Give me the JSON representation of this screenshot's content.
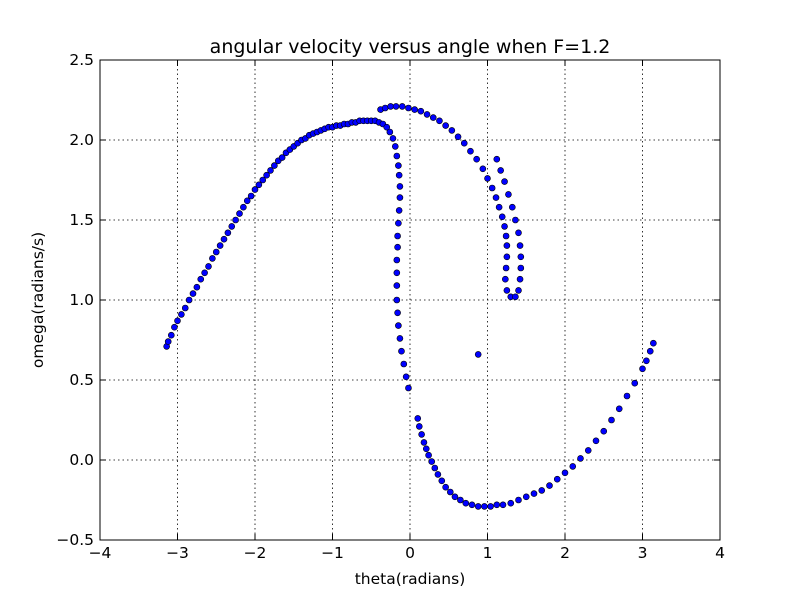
{
  "chart_data": {
    "type": "scatter",
    "title": "angular velocity versus angle when F=1.2",
    "xlabel": "theta(radians)",
    "ylabel": "omega(radians/s)",
    "xlim": [
      -4,
      4
    ],
    "ylim": [
      -0.5,
      2.5
    ],
    "xticks": [
      -4,
      -3,
      -2,
      -1,
      0,
      1,
      2,
      3,
      4
    ],
    "yticks": [
      -0.5,
      0.0,
      0.5,
      1.0,
      1.5,
      2.0,
      2.5
    ],
    "xtick_labels": [
      "−4",
      "−3",
      "−2",
      "−1",
      "0",
      "1",
      "2",
      "3",
      "4"
    ],
    "ytick_labels": [
      "−0.5",
      "0.0",
      "0.5",
      "1.0",
      "1.5",
      "2.0",
      "2.5"
    ],
    "grid": true,
    "marker_color": "#0000ff",
    "series": [
      {
        "points": [
          [
            -3.14,
            0.71
          ],
          [
            -3.12,
            0.74
          ],
          [
            -3.08,
            0.78
          ],
          [
            -3.04,
            0.83
          ],
          [
            -3.0,
            0.87
          ],
          [
            -2.95,
            0.91
          ],
          [
            -2.9,
            0.95
          ],
          [
            -2.85,
            1.0
          ],
          [
            -2.8,
            1.04
          ],
          [
            -2.75,
            1.08
          ],
          [
            -2.7,
            1.13
          ],
          [
            -2.65,
            1.17
          ],
          [
            -2.6,
            1.21
          ],
          [
            -2.55,
            1.26
          ],
          [
            -2.5,
            1.3
          ],
          [
            -2.45,
            1.34
          ],
          [
            -2.4,
            1.38
          ],
          [
            -2.35,
            1.42
          ],
          [
            -2.3,
            1.46
          ],
          [
            -2.25,
            1.5
          ],
          [
            -2.2,
            1.54
          ],
          [
            -2.15,
            1.58
          ],
          [
            -2.1,
            1.62
          ],
          [
            -2.05,
            1.65
          ],
          [
            -2.0,
            1.69
          ],
          [
            -1.95,
            1.72
          ],
          [
            -1.9,
            1.75
          ],
          [
            -1.85,
            1.78
          ],
          [
            -1.8,
            1.81
          ],
          [
            -1.75,
            1.84
          ],
          [
            -1.7,
            1.87
          ],
          [
            -1.65,
            1.89
          ],
          [
            -1.6,
            1.92
          ],
          [
            -1.55,
            1.94
          ],
          [
            -1.5,
            1.96
          ],
          [
            -1.45,
            1.98
          ],
          [
            -1.4,
            2.0
          ],
          [
            -1.35,
            2.01
          ],
          [
            -1.3,
            2.03
          ],
          [
            -1.25,
            2.04
          ],
          [
            -1.2,
            2.05
          ],
          [
            -1.15,
            2.06
          ],
          [
            -1.1,
            2.07
          ],
          [
            -1.05,
            2.08
          ],
          [
            -1.0,
            2.08
          ],
          [
            -0.95,
            2.09
          ],
          [
            -0.9,
            2.09
          ],
          [
            -0.85,
            2.1
          ],
          [
            -0.8,
            2.1
          ],
          [
            -0.75,
            2.11
          ],
          [
            -0.7,
            2.11
          ],
          [
            -0.65,
            2.12
          ],
          [
            -0.6,
            2.12
          ],
          [
            -0.55,
            2.12
          ],
          [
            -0.5,
            2.12
          ],
          [
            -0.45,
            2.12
          ],
          [
            -0.4,
            2.11
          ],
          [
            -0.35,
            2.1
          ],
          [
            -0.3,
            2.08
          ],
          [
            -0.26,
            2.05
          ],
          [
            -0.22,
            2.01
          ],
          [
            -0.19,
            1.96
          ],
          [
            -0.17,
            1.9
          ],
          [
            -0.15,
            1.84
          ],
          [
            -0.14,
            1.78
          ],
          [
            -0.13,
            1.71
          ],
          [
            -0.13,
            1.64
          ],
          [
            -0.14,
            1.56
          ],
          [
            -0.15,
            1.48
          ],
          [
            -0.16,
            1.4
          ],
          [
            -0.16,
            1.33
          ],
          [
            -0.17,
            1.25
          ],
          [
            -0.17,
            1.17
          ],
          [
            -0.17,
            1.09
          ],
          [
            -0.17,
            1.0
          ],
          [
            -0.16,
            0.92
          ],
          [
            -0.15,
            0.84
          ],
          [
            -0.13,
            0.76
          ],
          [
            -0.11,
            0.68
          ],
          [
            -0.08,
            0.6
          ],
          [
            -0.05,
            0.52
          ],
          [
            -0.02,
            0.45
          ],
          [
            0.1,
            0.26
          ],
          [
            0.12,
            0.21
          ],
          [
            0.15,
            0.16
          ],
          [
            0.18,
            0.11
          ],
          [
            0.21,
            0.07
          ],
          [
            0.24,
            0.03
          ],
          [
            0.28,
            -0.01
          ],
          [
            0.32,
            -0.05
          ],
          [
            0.36,
            -0.09
          ],
          [
            0.41,
            -0.13
          ],
          [
            0.46,
            -0.17
          ],
          [
            0.52,
            -0.2
          ],
          [
            0.58,
            -0.23
          ],
          [
            0.65,
            -0.25
          ],
          [
            0.72,
            -0.27
          ],
          [
            0.8,
            -0.28
          ],
          [
            0.88,
            -0.29
          ],
          [
            0.96,
            -0.29
          ],
          [
            1.04,
            -0.29
          ],
          [
            1.12,
            -0.28
          ],
          [
            1.2,
            -0.28
          ],
          [
            1.3,
            -0.27
          ],
          [
            1.4,
            -0.25
          ],
          [
            1.5,
            -0.23
          ],
          [
            1.6,
            -0.21
          ],
          [
            1.7,
            -0.19
          ],
          [
            1.8,
            -0.16
          ],
          [
            1.9,
            -0.12
          ],
          [
            2.0,
            -0.08
          ],
          [
            2.1,
            -0.04
          ],
          [
            2.2,
            0.01
          ],
          [
            2.3,
            0.06
          ],
          [
            2.4,
            0.12
          ],
          [
            2.5,
            0.18
          ],
          [
            2.6,
            0.25
          ],
          [
            2.7,
            0.32
          ],
          [
            2.8,
            0.4
          ],
          [
            2.9,
            0.48
          ],
          [
            3.0,
            0.57
          ],
          [
            3.05,
            0.62
          ],
          [
            3.1,
            0.68
          ],
          [
            3.14,
            0.73
          ],
          [
            -0.38,
            2.19
          ],
          [
            -0.32,
            2.2
          ],
          [
            -0.25,
            2.21
          ],
          [
            -0.18,
            2.21
          ],
          [
            -0.1,
            2.21
          ],
          [
            -0.02,
            2.2
          ],
          [
            0.06,
            2.19
          ],
          [
            0.14,
            2.18
          ],
          [
            0.22,
            2.16
          ],
          [
            0.3,
            2.14
          ],
          [
            0.38,
            2.12
          ],
          [
            0.46,
            2.09
          ],
          [
            0.54,
            2.06
          ],
          [
            0.62,
            2.02
          ],
          [
            0.7,
            1.98
          ],
          [
            0.78,
            1.93
          ],
          [
            0.86,
            1.88
          ],
          [
            0.94,
            1.82
          ],
          [
            1.0,
            1.76
          ],
          [
            1.06,
            1.7
          ],
          [
            1.11,
            1.64
          ],
          [
            1.15,
            1.58
          ],
          [
            1.19,
            1.52
          ],
          [
            1.22,
            1.46
          ],
          [
            1.24,
            1.4
          ],
          [
            1.25,
            1.34
          ],
          [
            1.25,
            1.27
          ],
          [
            1.24,
            1.2
          ],
          [
            1.23,
            1.13
          ],
          [
            1.25,
            1.06
          ],
          [
            1.3,
            1.02
          ],
          [
            1.36,
            1.02
          ],
          [
            1.4,
            1.06
          ],
          [
            1.42,
            1.13
          ],
          [
            1.43,
            1.2
          ],
          [
            1.43,
            1.27
          ],
          [
            1.42,
            1.34
          ],
          [
            1.4,
            1.42
          ],
          [
            1.36,
            1.5
          ],
          [
            1.32,
            1.58
          ],
          [
            1.27,
            1.66
          ],
          [
            1.22,
            1.74
          ],
          [
            1.17,
            1.81
          ],
          [
            1.12,
            1.88
          ],
          [
            0.88,
            0.66
          ]
        ]
      }
    ]
  }
}
